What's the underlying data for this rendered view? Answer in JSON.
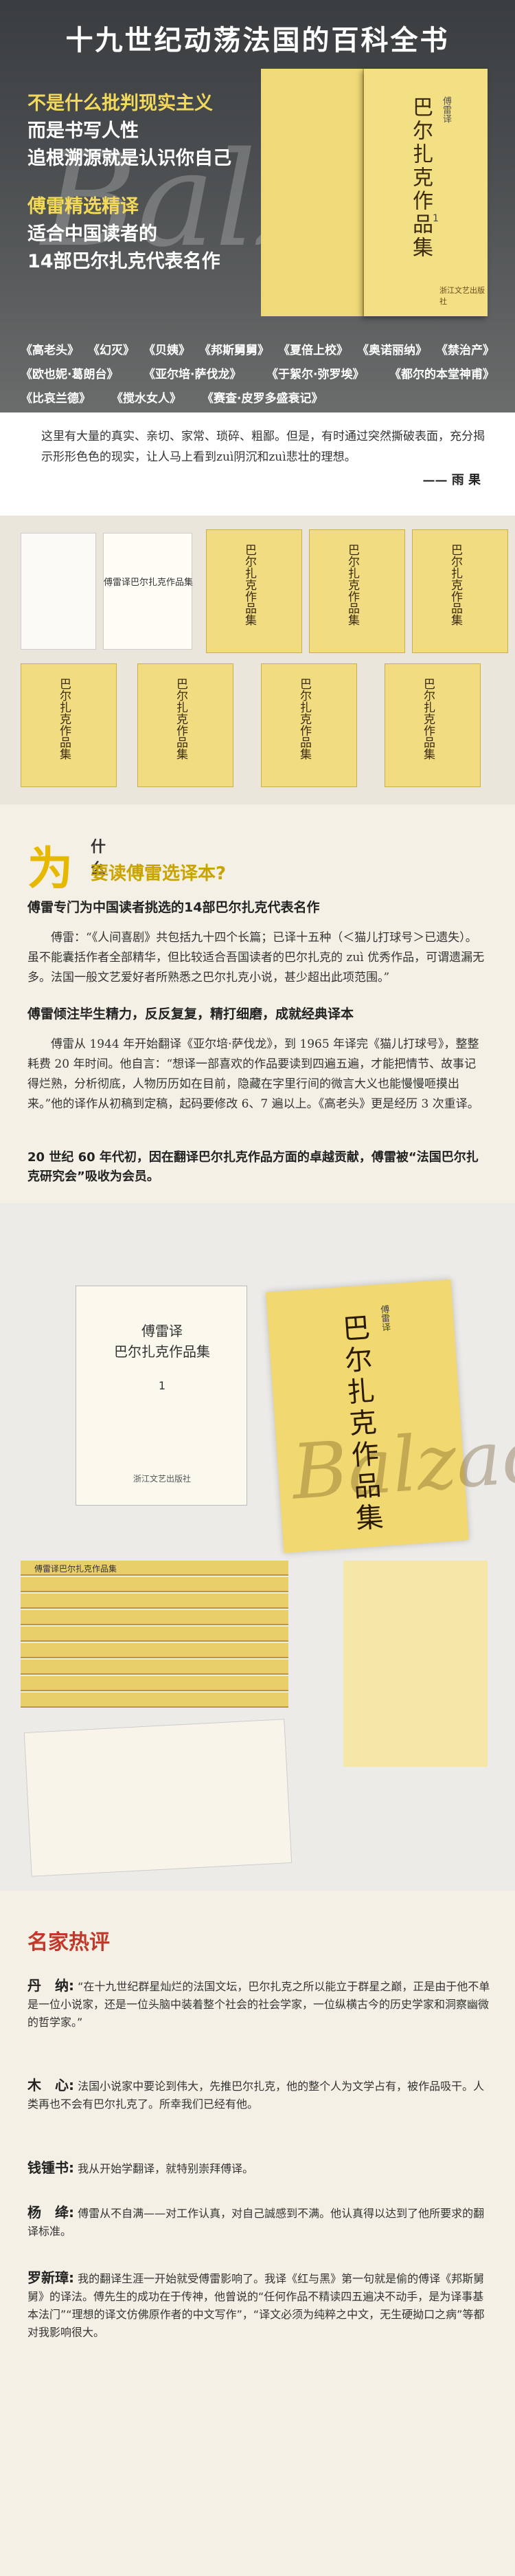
{
  "hero": {
    "title": "十九世纪动荡法国的百科全书",
    "line1": "不是什么批判现实主义",
    "line2": "而是书写人性",
    "line3": "追根溯源就是认识你自己",
    "line4": "傅雷精选精译",
    "line5": "适合中国读者的",
    "line6": "14部巴尔扎克代表名作",
    "book_label": "巴尔扎克作品集",
    "book_sub": "傅雷译",
    "book_no": "1",
    "book_pub": "浙江文艺出版社",
    "titles": [
      [
        "《高老头》",
        "《幻灭》",
        "《贝姨》",
        "《邦斯舅舅》",
        "《夏倍上校》",
        "《奥诺丽纳》",
        "《禁治产》"
      ],
      [
        "《欧也妮·葛朗台》",
        "《亚尔培·萨伐龙》",
        "《于絮尔·弥罗埃》",
        "《都尔的本堂神甫》"
      ],
      [
        "《比哀兰德》",
        "《搅水女人》",
        "《赛查·皮罗多盛衰记》"
      ]
    ]
  },
  "quote1": {
    "text": "这里有大量的真实、亲切、家常、琐碎、粗鄙。但是，有时通过突然撕破表面，充分揭示形形色色的现实，让人马上看到zuì阴沉和zuì悲壮的理想。",
    "author": "—— 雨 果"
  },
  "photo1": {
    "open_title": "傅雷译巴尔扎克作品集",
    "book_labels": [
      "巴尔扎克作品集",
      "巴尔扎克作品集",
      "巴尔扎克作品集",
      "巴尔扎克作品集",
      "巴尔扎克作品集",
      "巴尔扎克作品集",
      "巴尔扎克作品集"
    ]
  },
  "why": {
    "big": "为",
    "what": "什么",
    "sub": "要读傅雷选译本?",
    "h1": "傅雷专门为中国读者挑选的14部巴尔扎克代表名作",
    "p1": "傅雷：“《人间喜剧》共包括九十四个长篇；已译十五种（＜猫儿打球号＞已遗失）。虽不能囊括作者全部精华，但比较适合吾国读者的巴尔扎克的 zuì 优秀作品，可谓遗漏无多。法国一般文艺爱好者所熟悉之巴尔扎克小说，甚少超出此项范围。”",
    "h2": "傅雷倾注毕生精力，反反复复，精打细磨，成就经典译本",
    "p2": "傅雷从 1944 年开始翻译《亚尔培·萨伐龙》，到 1965 年译完《猫儿打球号》，整整耗费 20 年时间。他自言：“想译一部喜欢的作品要读到四遍五遍，才能把情节、故事记得烂熟，分析彻底，人物历历如在目前，隐藏在字里行间的微言大义也能慢慢咂摸出来。”他的译作从初稿到定稿，起码要修改 6、7 遍以上。《高老头》更是经历 3 次重译。",
    "bold": "20 世纪 60 年代初，因在翻译巴尔扎克作品方面的卓越贡献，傅雷被“法国巴尔扎克研究会”吸收为会员。"
  },
  "photo2": {
    "book_title": "傅雷译\n巴尔扎克作品集",
    "book_no": "1",
    "book_pub": "浙江文艺出版社",
    "yellow_title": "巴尔扎克作品集",
    "yellow_sub": "傅雷译",
    "stack_label": "傅雷译巴尔扎克作品集"
  },
  "reviews": {
    "title": "名家热评",
    "items": [
      {
        "name": "丹　纳:",
        "text": "“在十九世纪群星灿烂的法国文坛，巴尔扎克之所以能立于群星之巅，正是由于他不单是一位小说家，还是一位头脑中装着整个社会的社会学家，一位纵横古今的历史学家和洞察幽微的哲学家。”"
      },
      {
        "name": "木　心:",
        "text": "法国小说家中要论到伟大，先推巴尔扎克，他的整个人为文学占有，被作品吸干。人类再也不会有巴尔扎克了。所幸我们已经有他。"
      },
      {
        "name": "钱锺书:",
        "text": "我从开始学翻译，就特别崇拜傅译。"
      },
      {
        "name": "杨　绛:",
        "text": "傅雷从不自满——对工作认真，对自己誠感到不满。他认真得以达到了他所要求的翻译标准。"
      },
      {
        "name": "罗新璋:",
        "text": "我的翻译生涯一开始就受傅雷影响了。我译《红与黑》第一句就是偷的傅译《邦斯舅舅》的译法。傅先生的成功在于传神，他曾说的“任何作品不精读四五遍决不动手，是为译事基本法门”“理想的译文仿佛原作者的中文写作”，“译文必须为纯粹之中文，无生硬拗口之病”等都对我影响很大。"
      }
    ]
  }
}
